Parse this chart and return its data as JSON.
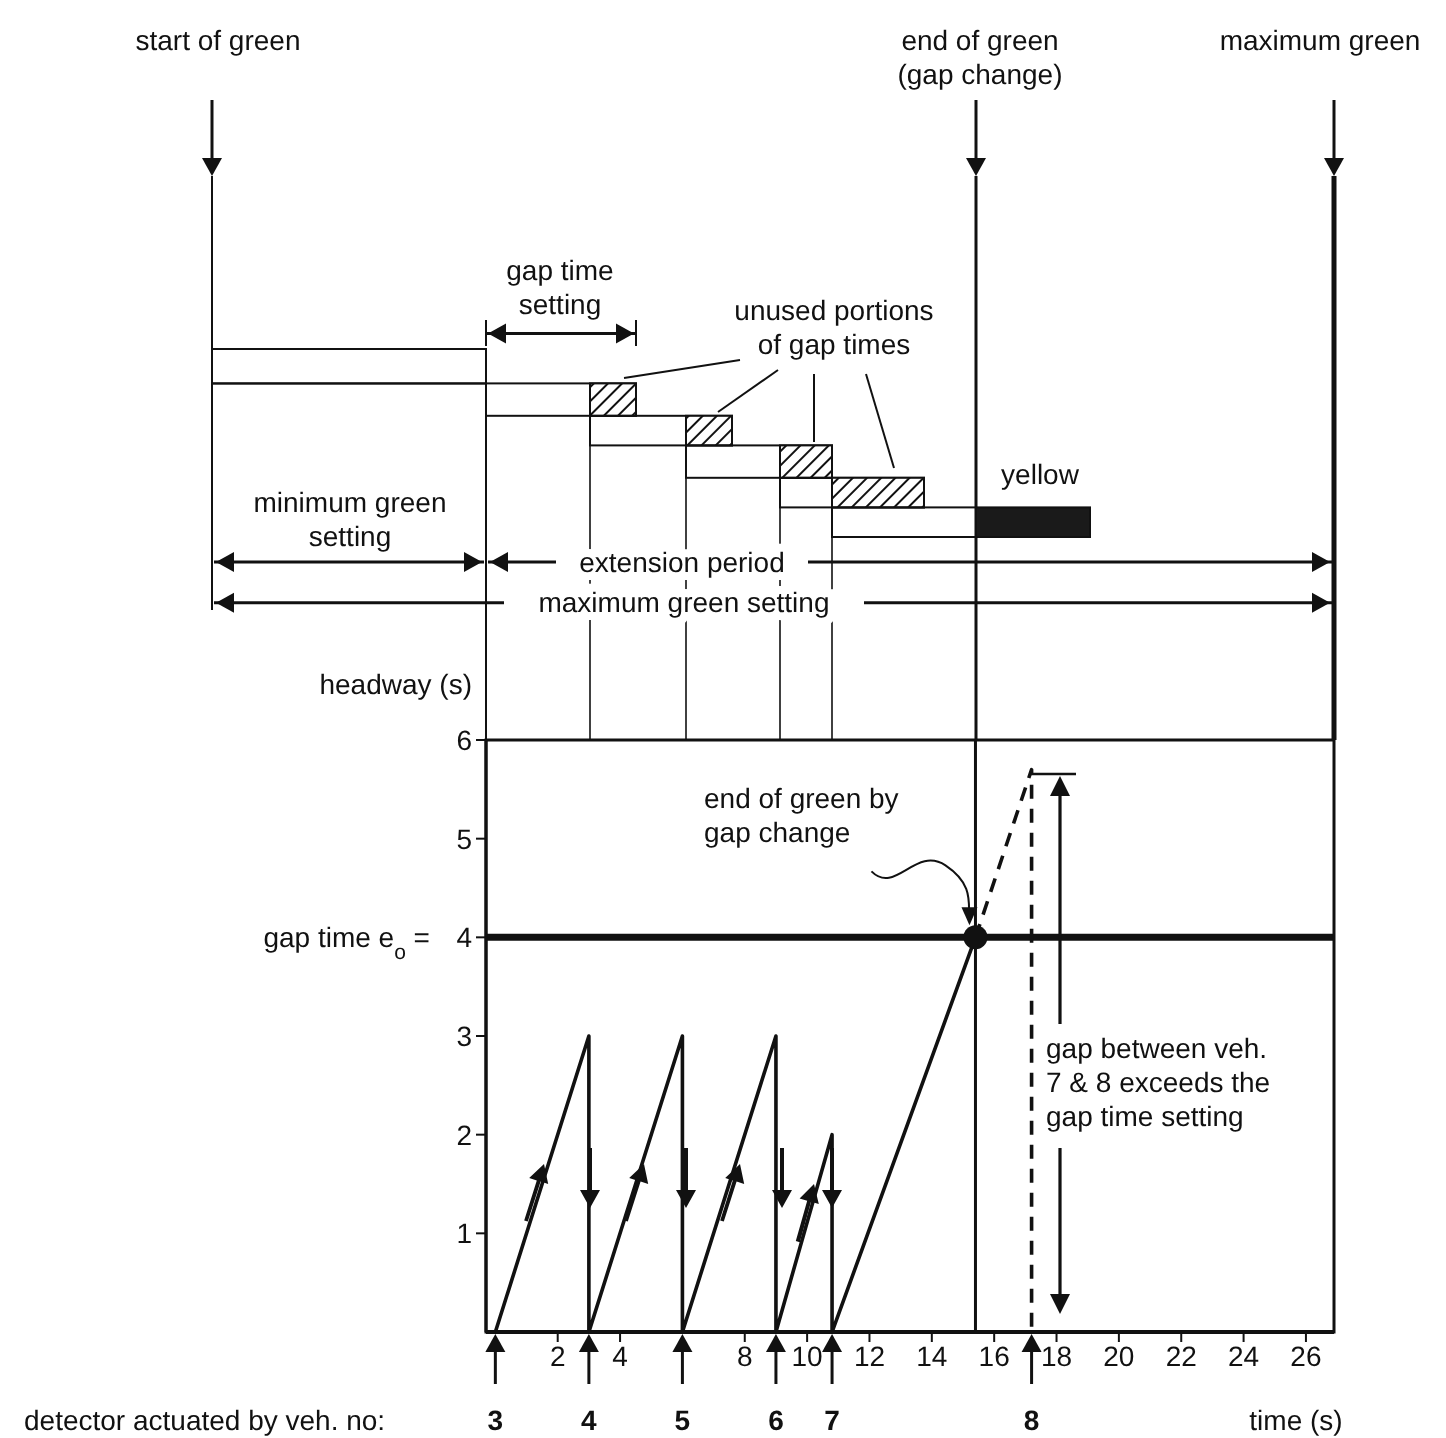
{
  "chart_data": {
    "type": "line",
    "xlabel": "time (s)",
    "ylabel": "headway (s)",
    "xlim": [
      -0.3,
      26.9
    ],
    "xticks": [
      2,
      4,
      8,
      10,
      12,
      14,
      16,
      18,
      20,
      22,
      24,
      26
    ],
    "ylim": [
      0,
      6
    ],
    "yticks": [
      1,
      2,
      3,
      4,
      5,
      6
    ],
    "marker": "none",
    "series": [
      {
        "color": "#111111",
        "line_style": "solid",
        "x": [
          0,
          3,
          3,
          6,
          6,
          9,
          9,
          10.8,
          10.8,
          15.4
        ],
        "values": [
          0,
          3,
          0,
          3,
          0,
          3,
          0,
          2,
          0,
          4
        ]
      },
      {
        "color": "#111111",
        "line_style": "dashed",
        "x": [
          15.4,
          17.2,
          17.2
        ],
        "values": [
          4,
          5.7,
          0
        ]
      },
      {
        "type": "scatter",
        "color": "#111111",
        "marker": "circle",
        "x": [
          15.4
        ],
        "values": [
          4
        ]
      }
    ],
    "ref_lines": [
      {
        "axis": "y",
        "value": 4,
        "label": "gap time e$_{o}$ ="
      },
      {
        "axis": "x",
        "value": 15.4
      }
    ],
    "annotations": [
      "start of green",
      "end of green\n(gap change)",
      "maximum green",
      "gap time\nsetting",
      "unused portions\nof gap times",
      "yellow",
      "minimum green\nsetting",
      "extension period",
      "maximum green setting",
      {
        "text": "end of green by\ngap change",
        "x": 15.4,
        "y": 4
      },
      "gap between veh.\n7 & 8 exceeds the\ngap time setting",
      "detector actuated by veh. no:",
      {
        "text": "3",
        "x": 0,
        "y": 0
      },
      {
        "text": "4",
        "x": 3,
        "y": 0
      },
      {
        "text": "5",
        "x": 6,
        "y": 0
      },
      {
        "text": "6",
        "x": 9,
        "y": 0
      },
      {
        "text": "7",
        "x": 10.8,
        "y": 0
      },
      {
        "text": "8",
        "x": 17.2,
        "y": 0
      }
    ]
  }
}
